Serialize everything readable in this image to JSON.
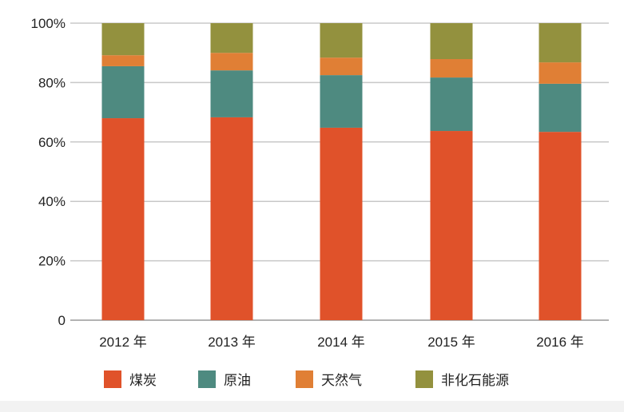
{
  "chart_data": {
    "type": "bar",
    "stacked": true,
    "categories": [
      "2012 年",
      "2013 年",
      "2014 年",
      "2015 年",
      "2016 年"
    ],
    "series": [
      {
        "name": "煤炭",
        "color": "#e0522a",
        "values": [
          68.0,
          68.3,
          64.8,
          63.7,
          63.4
        ]
      },
      {
        "name": "原油",
        "color": "#4e8a80",
        "values": [
          17.5,
          15.8,
          17.7,
          18.0,
          16.2
        ]
      },
      {
        "name": "天然气",
        "color": "#e07f35",
        "values": [
          3.7,
          5.9,
          5.9,
          6.2,
          7.2
        ]
      },
      {
        "name": "非化石能源",
        "color": "#93913e",
        "values": [
          10.8,
          10.0,
          11.6,
          12.1,
          13.2
        ]
      }
    ],
    "yticks": [
      "0",
      "20%",
      "40%",
      "60%",
      "80%",
      "100%"
    ],
    "ylim": [
      0,
      100
    ],
    "grid": true,
    "legend_position": "bottom"
  }
}
